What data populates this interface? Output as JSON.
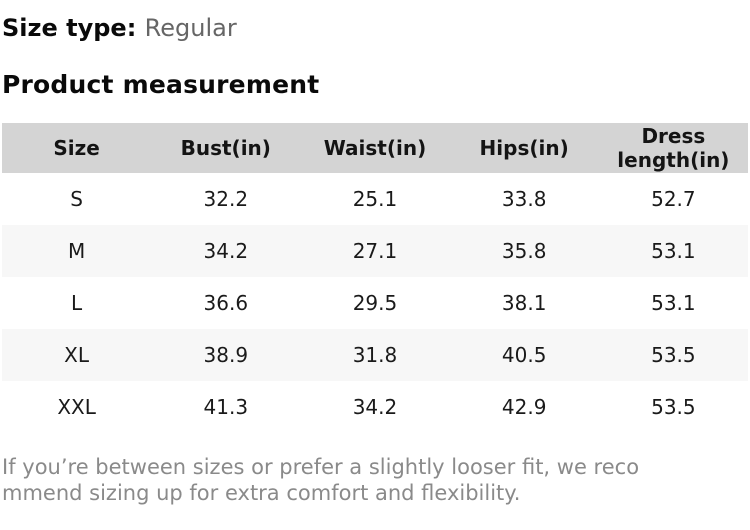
{
  "size_type": {
    "label": "Size type:",
    "value": "Regular"
  },
  "section_title": "Product measurement",
  "table": {
    "headers": [
      "Size",
      "Bust(in)",
      "Waist(in)",
      "Hips(in)",
      "Dress length(in)"
    ],
    "rows": [
      [
        "S",
        "32.2",
        "25.1",
        "33.8",
        "52.7"
      ],
      [
        "M",
        "34.2",
        "27.1",
        "35.8",
        "53.1"
      ],
      [
        "L",
        "36.6",
        "29.5",
        "38.1",
        "53.1"
      ],
      [
        "XL",
        "38.9",
        "31.8",
        "40.5",
        "53.5"
      ],
      [
        "XXL",
        "41.3",
        "34.2",
        "42.9",
        "53.5"
      ]
    ]
  },
  "note": {
    "full": "If you’re between sizes or prefer a slightly looser fit, we recommend sizing up for extra comfort and flexibility.",
    "lines": [
      "If you’re between sizes or prefer a slightly looser fit, we reco",
      "mmend sizing up for extra comfort and flexibility."
    ]
  },
  "colors": {
    "header_bg": "#d4d4d4",
    "alt_row_bg": "#f7f7f7",
    "heading_text": "#0a0a0a",
    "cell_text": "#1a1a1a",
    "size_type_value_text": "#666666",
    "note_text": "#8a8a8a",
    "background": "#ffffff"
  }
}
